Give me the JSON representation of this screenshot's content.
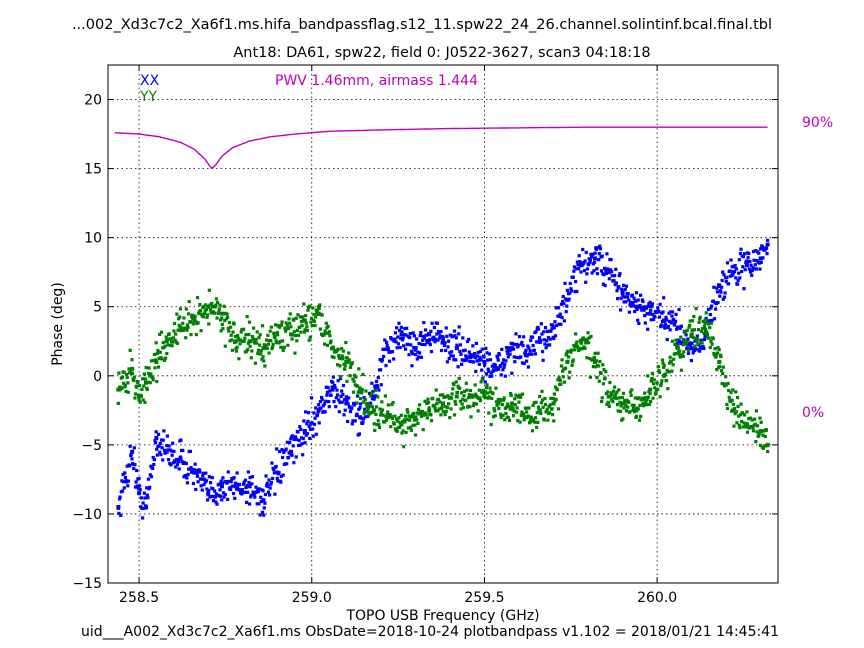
{
  "header": {
    "title": "...002_Xd3c7c2_Xa6f1.ms.hifa_bandpassflag.s12_11.spw22_24_26.channel.solintinf.bcal.final.tbl",
    "subtitle": "Ant18: DA61,  spw22,  field 0: J0522-3627,  scan3  04:18:18"
  },
  "footer": {
    "text": "uid___A002_Xd3c7c2_Xa6f1.ms  ObsDate=2018-10-24   plotbandpass v1.102 = 2018/01/21 14:45:41"
  },
  "annotation": {
    "pwv_label": "PWV 1.46mm, airmass 1.444",
    "right_top": "90%",
    "right_bottom": "0%"
  },
  "colors": {
    "xx": "#0000ff",
    "yy": "#008000",
    "atm": "#c000c0",
    "grid": "#000000"
  },
  "chart_data": {
    "type": "scatter",
    "xlabel": "TOPO USB Frequency (GHz)",
    "ylabel": "Phase (deg)",
    "xlim": [
      258.41,
      260.35
    ],
    "ylim": [
      -15,
      22.5
    ],
    "xticks": [
      258.5,
      259.0,
      259.5,
      260.0
    ],
    "xtick_labels": [
      "258.5",
      "259.0",
      "259.5",
      "260.0"
    ],
    "yticks": [
      -15,
      -10,
      -5,
      0,
      5,
      10,
      15,
      20
    ],
    "ytick_labels": [
      "−15",
      "−10",
      "−5",
      "0",
      "5",
      "10",
      "15",
      "20"
    ],
    "grid": true,
    "legend_position": "top-left",
    "series": [
      {
        "name": "XX",
        "x": [
          258.44,
          258.48,
          258.5,
          258.52,
          258.55,
          258.58,
          258.62,
          258.66,
          258.7,
          258.74,
          258.78,
          258.82,
          258.86,
          258.9,
          258.94,
          258.98,
          259.02,
          259.06,
          259.1,
          259.14,
          259.18,
          259.22,
          259.26,
          259.3,
          259.34,
          259.38,
          259.42,
          259.46,
          259.5,
          259.54,
          259.58,
          259.62,
          259.66,
          259.7,
          259.74,
          259.78,
          259.82,
          259.86,
          259.9,
          259.94,
          259.98,
          260.02,
          260.06,
          260.1,
          260.14,
          260.18,
          260.22,
          260.26,
          260.3,
          260.32
        ],
        "y": [
          -9.5,
          -5.5,
          -8.5,
          -9.5,
          -4.5,
          -5.5,
          -6.0,
          -7.0,
          -8.5,
          -8.0,
          -8.0,
          -8.0,
          -9.0,
          -7.0,
          -5.5,
          -4.0,
          -2.5,
          -1.0,
          -2.0,
          -3.0,
          -1.5,
          2.0,
          3.0,
          2.0,
          3.0,
          2.5,
          2.0,
          1.5,
          1.0,
          0.5,
          2.0,
          1.5,
          2.5,
          3.5,
          5.5,
          8.0,
          8.5,
          7.5,
          6.0,
          5.0,
          4.5,
          4.0,
          3.5,
          2.0,
          3.0,
          6.5,
          7.5,
          8.0,
          8.5,
          9.5
        ]
      },
      {
        "name": "YY",
        "x": [
          258.44,
          258.48,
          258.5,
          258.52,
          258.55,
          258.58,
          258.62,
          258.66,
          258.7,
          258.74,
          258.78,
          258.82,
          258.86,
          258.9,
          258.94,
          258.98,
          259.02,
          259.06,
          259.1,
          259.14,
          259.18,
          259.22,
          259.26,
          259.3,
          259.34,
          259.38,
          259.42,
          259.46,
          259.5,
          259.54,
          259.58,
          259.62,
          259.66,
          259.7,
          259.74,
          259.78,
          259.82,
          259.86,
          259.9,
          259.94,
          259.98,
          260.02,
          260.06,
          260.1,
          260.14,
          260.18,
          260.22,
          260.26,
          260.3,
          260.32
        ],
        "y": [
          -1.0,
          0.5,
          -1.5,
          -0.5,
          1.0,
          2.5,
          3.5,
          4.0,
          5.0,
          4.5,
          2.5,
          2.5,
          2.0,
          3.0,
          3.0,
          4.0,
          4.5,
          2.0,
          1.0,
          -1.0,
          -2.5,
          -3.0,
          -3.5,
          -3.0,
          -2.5,
          -2.0,
          -1.5,
          -1.5,
          -1.5,
          -2.0,
          -2.0,
          -3.0,
          -2.5,
          -2.0,
          1.0,
          2.5,
          1.0,
          -1.5,
          -2.0,
          -2.5,
          -1.0,
          0.0,
          2.0,
          3.0,
          4.0,
          1.0,
          -2.5,
          -3.5,
          -4.0,
          -5.0
        ]
      },
      {
        "name": "",
        "kind": "line",
        "x": [
          258.43,
          258.5,
          258.56,
          258.62,
          258.66,
          258.69,
          258.71,
          258.72,
          258.74,
          258.77,
          258.82,
          258.88,
          258.95,
          259.05,
          259.2,
          259.4,
          259.6,
          259.8,
          260.0,
          260.2,
          260.32
        ],
        "y": [
          17.6,
          17.5,
          17.3,
          16.9,
          16.4,
          15.7,
          15.0,
          15.2,
          15.9,
          16.5,
          17.0,
          17.3,
          17.5,
          17.7,
          17.8,
          17.9,
          17.95,
          18.0,
          18.0,
          18.0,
          18.0
        ]
      }
    ]
  }
}
